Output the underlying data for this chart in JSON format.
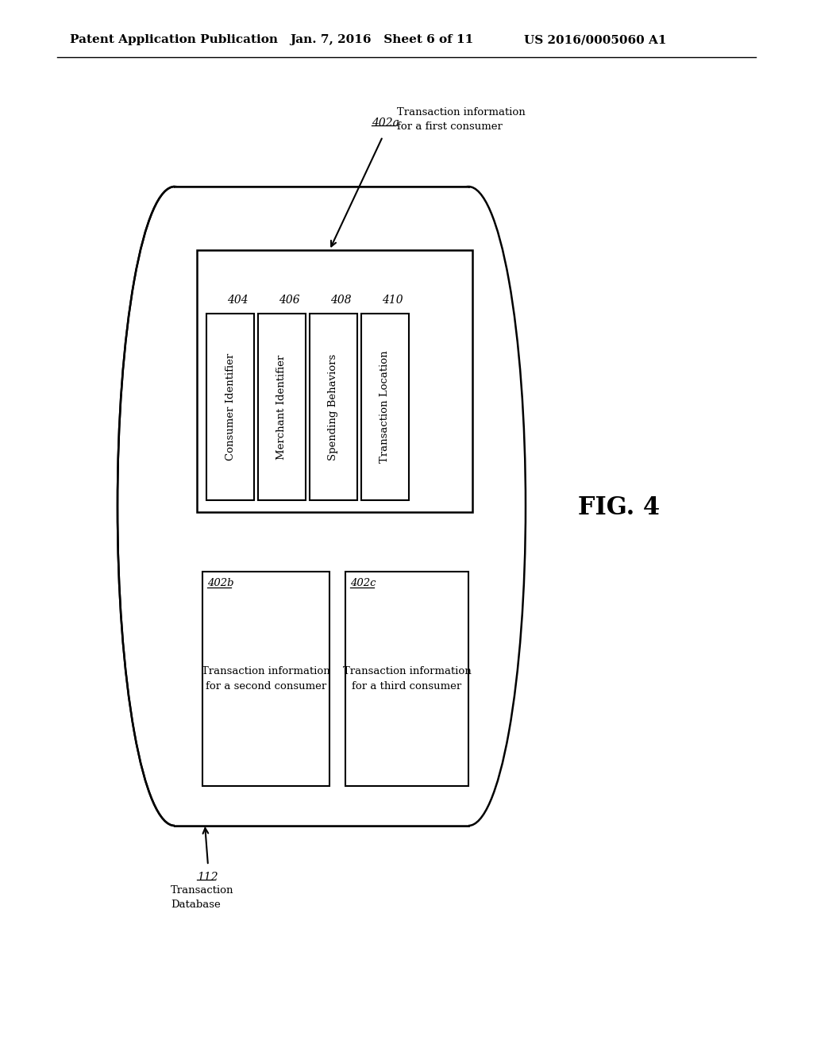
{
  "bg_color": "#ffffff",
  "header_left": "Patent Application Publication",
  "header_mid": "Jan. 7, 2016   Sheet 6 of 11",
  "header_right": "US 2016/0005060 A1",
  "fig_label": "FIG. 4",
  "cylinder_label": "112",
  "cylinder_label2": "Transaction\nDatabase",
  "record_402a_label": "402a",
  "record_402a_text": "Transaction information\nfor a first consumer",
  "inner_boxes": [
    {
      "label": "404",
      "text": "Consumer Identifier"
    },
    {
      "label": "406",
      "text": "Merchant Identifier"
    },
    {
      "label": "408",
      "text": "Spending Behaviors"
    },
    {
      "label": "410",
      "text": "Transaction Location"
    }
  ],
  "lower_left_label": "402b",
  "lower_left_text": "Transaction information\nfor a second consumer",
  "lower_right_label": "402c",
  "lower_right_text": "Transaction information\nfor a third consumer"
}
